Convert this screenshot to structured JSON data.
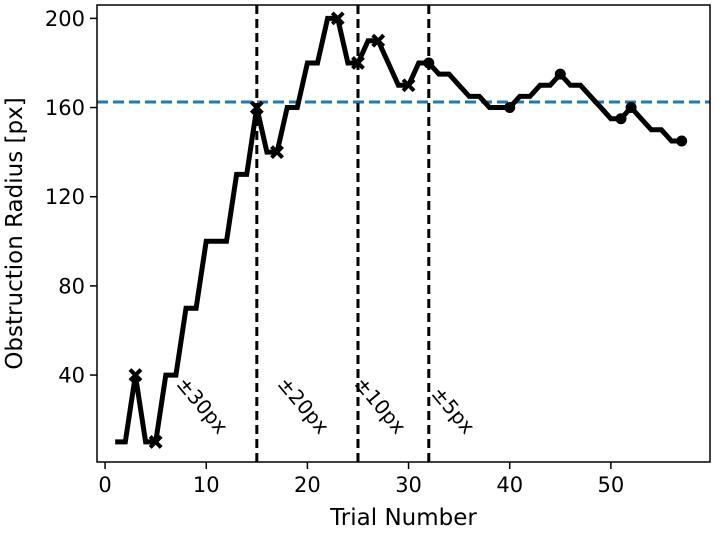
{
  "chart_data": {
    "type": "line",
    "title": "",
    "xlabel": "Trial Number",
    "ylabel": "Obstruction Radius [px]",
    "xlim": [
      -0.8,
      59.8
    ],
    "ylim": [
      1,
      206
    ],
    "xticks": [
      0,
      10,
      20,
      30,
      40,
      50
    ],
    "yticks": [
      40,
      80,
      120,
      160,
      200
    ],
    "grid": false,
    "legend": "none",
    "colors": {
      "series": "#000000",
      "threshold": "#1f77b4",
      "phase_lines": "#000000"
    },
    "series": [
      {
        "x": [
          1,
          2,
          3,
          4,
          5,
          6,
          7,
          8,
          9,
          10,
          11,
          12,
          13,
          14,
          15,
          16,
          17,
          18,
          19,
          20,
          21,
          22,
          23,
          24,
          25,
          26,
          27,
          28,
          29,
          30,
          31,
          32,
          33,
          34,
          35,
          36,
          37,
          38,
          39,
          40,
          41,
          42,
          43,
          44,
          45,
          46,
          47,
          48,
          49,
          50,
          51,
          52,
          53,
          54,
          55,
          56,
          57
        ],
        "y": [
          10,
          10,
          40,
          10,
          10,
          40,
          40,
          70,
          70,
          100,
          100,
          100,
          130,
          130,
          160,
          140,
          140,
          160,
          160,
          180,
          180,
          200,
          200,
          180,
          180,
          190,
          190,
          180,
          170,
          170,
          180,
          180,
          175,
          175,
          170,
          165,
          165,
          160,
          160,
          160,
          165,
          165,
          170,
          170,
          175,
          170,
          170,
          165,
          160,
          155,
          155,
          160,
          155,
          150,
          150,
          145,
          145
        ]
      }
    ],
    "markers": [
      {
        "shape": "x",
        "x": 3,
        "y": 40
      },
      {
        "shape": "x",
        "x": 5,
        "y": 10
      },
      {
        "shape": "x",
        "x": 15,
        "y": 160
      },
      {
        "shape": "x",
        "x": 17,
        "y": 140
      },
      {
        "shape": "x",
        "x": 23,
        "y": 200
      },
      {
        "shape": "x",
        "x": 25,
        "y": 180
      },
      {
        "shape": "x",
        "x": 27,
        "y": 190
      },
      {
        "shape": "x",
        "x": 30,
        "y": 170
      },
      {
        "shape": "dot",
        "x": 32,
        "y": 180
      },
      {
        "shape": "dot",
        "x": 40,
        "y": 160
      },
      {
        "shape": "dot",
        "x": 45,
        "y": 175
      },
      {
        "shape": "dot",
        "x": 51,
        "y": 155
      },
      {
        "shape": "dot",
        "x": 52,
        "y": 160
      },
      {
        "shape": "dot",
        "x": 57,
        "y": 145
      }
    ],
    "hlines": [
      {
        "y": 162.5,
        "style": "dashed"
      }
    ],
    "vlines": [
      {
        "x": 15,
        "style": "dashed"
      },
      {
        "x": 25,
        "style": "dashed"
      },
      {
        "x": 32,
        "style": "dashed"
      }
    ],
    "annotations": [
      {
        "text": "±30px",
        "x": 11.2,
        "y": 13,
        "rotation": -50
      },
      {
        "text": "±20px",
        "x": 21.2,
        "y": 13,
        "rotation": -50
      },
      {
        "text": "±10px",
        "x": 28.8,
        "y": 13,
        "rotation": -50
      },
      {
        "text": "±5px",
        "x": 35.6,
        "y": 13,
        "rotation": -50
      }
    ]
  }
}
